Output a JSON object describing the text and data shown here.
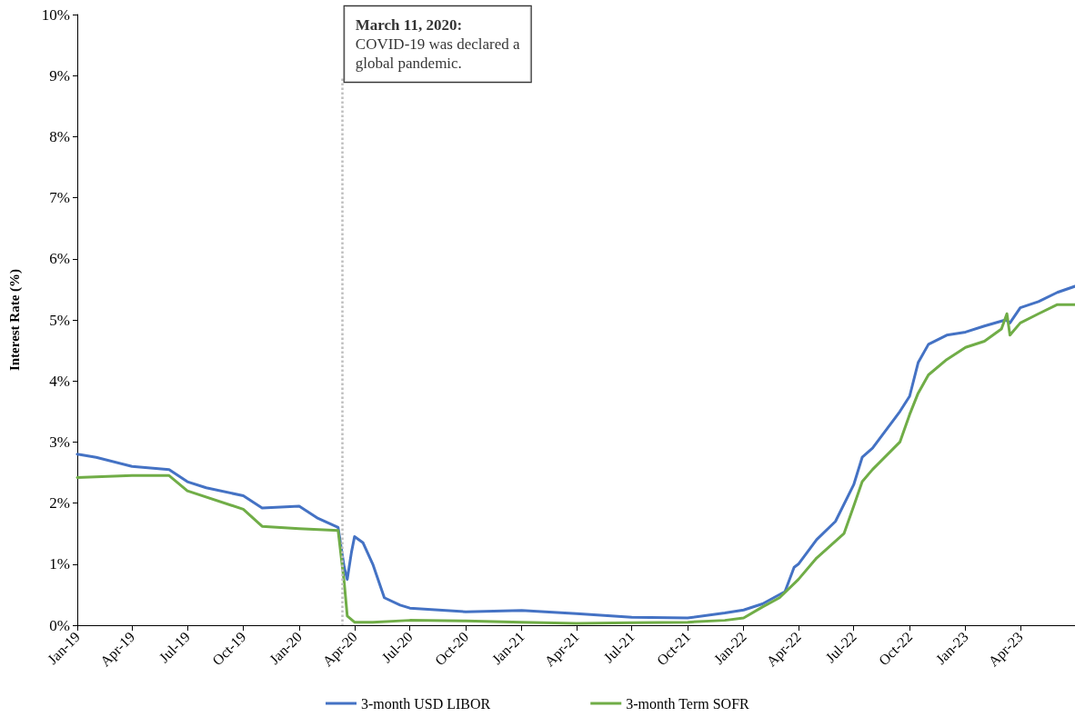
{
  "chart_data": {
    "type": "line",
    "ylabel": "Interest Rate (%)",
    "xlim": [
      "2019-01-01",
      "2023-06-30"
    ],
    "xticks": [
      {
        "value": "2019-01-01",
        "label": "Jan-19"
      },
      {
        "value": "2019-04-01",
        "label": "Apr-19"
      },
      {
        "value": "2019-07-01",
        "label": "Jul-19"
      },
      {
        "value": "2019-10-01",
        "label": "Oct-19"
      },
      {
        "value": "2020-01-01",
        "label": "Jan-20"
      },
      {
        "value": "2020-04-01",
        "label": "Apr-20"
      },
      {
        "value": "2020-07-01",
        "label": "Jul-20"
      },
      {
        "value": "2020-10-01",
        "label": "Oct-20"
      },
      {
        "value": "2021-01-01",
        "label": "Jan-21"
      },
      {
        "value": "2021-04-01",
        "label": "Apr-21"
      },
      {
        "value": "2021-07-01",
        "label": "Jul-21"
      },
      {
        "value": "2021-10-01",
        "label": "Oct-21"
      },
      {
        "value": "2022-01-01",
        "label": "Jan-22"
      },
      {
        "value": "2022-04-01",
        "label": "Apr-22"
      },
      {
        "value": "2022-07-01",
        "label": "Jul-22"
      },
      {
        "value": "2022-10-01",
        "label": "Oct-22"
      },
      {
        "value": "2023-01-01",
        "label": "Jan-23"
      },
      {
        "value": "2023-04-01",
        "label": "Apr-23"
      }
    ],
    "ylim": [
      0,
      10
    ],
    "yticks": [
      {
        "value": 0,
        "label": "0%"
      },
      {
        "value": 1,
        "label": "1%"
      },
      {
        "value": 2,
        "label": "2%"
      },
      {
        "value": 3,
        "label": "3%"
      },
      {
        "value": 4,
        "label": "4%"
      },
      {
        "value": 5,
        "label": "5%"
      },
      {
        "value": 6,
        "label": "6%"
      },
      {
        "value": 7,
        "label": "7%"
      },
      {
        "value": 8,
        "label": "8%"
      },
      {
        "value": 9,
        "label": "9%"
      },
      {
        "value": 10,
        "label": "10%"
      }
    ],
    "grid": false,
    "legend": "bottom",
    "marker": "none",
    "line_style": "solid",
    "ref_lines": [
      {
        "axis": "x",
        "value": "2020-03-11",
        "label": "March 11, 2020: COVID-19 was declared a global pandemic.",
        "color": "#bfbfbf",
        "line_style": "dotted"
      }
    ],
    "series": [
      {
        "name": "3-month USD LIBOR",
        "color": "#4472c4",
        "x": [
          "2019-01-01",
          "2019-02-01",
          "2019-04-01",
          "2019-06-01",
          "2019-07-01",
          "2019-08-01",
          "2019-10-01",
          "2019-11-01",
          "2020-01-01",
          "2020-02-01",
          "2020-03-05",
          "2020-03-15",
          "2020-03-20",
          "2020-03-27",
          "2020-04-01",
          "2020-04-15",
          "2020-05-01",
          "2020-05-20",
          "2020-06-15",
          "2020-07-01",
          "2020-10-01",
          "2021-01-01",
          "2021-04-01",
          "2021-07-01",
          "2021-10-01",
          "2021-12-01",
          "2022-01-01",
          "2022-02-01",
          "2022-03-10",
          "2022-03-25",
          "2022-04-01",
          "2022-05-01",
          "2022-06-01",
          "2022-07-01",
          "2022-07-15",
          "2022-08-01",
          "2022-09-15",
          "2022-10-01",
          "2022-10-15",
          "2022-11-01",
          "2022-12-01",
          "2023-01-01",
          "2023-02-01",
          "2023-03-08",
          "2023-03-15",
          "2023-04-01",
          "2023-05-01",
          "2023-06-01",
          "2023-06-30"
        ],
        "values": [
          2.8,
          2.75,
          2.6,
          2.55,
          2.35,
          2.25,
          2.12,
          1.92,
          1.95,
          1.75,
          1.6,
          0.95,
          0.75,
          1.2,
          1.45,
          1.35,
          1.0,
          0.45,
          0.33,
          0.28,
          0.22,
          0.24,
          0.19,
          0.13,
          0.12,
          0.2,
          0.25,
          0.35,
          0.55,
          0.95,
          1.0,
          1.4,
          1.7,
          2.3,
          2.75,
          2.9,
          3.5,
          3.75,
          4.3,
          4.6,
          4.75,
          4.8,
          4.9,
          5.0,
          4.95,
          5.2,
          5.3,
          5.45,
          5.55
        ]
      },
      {
        "name": "3-month Term SOFR",
        "color": "#70ad47",
        "x": [
          "2019-01-01",
          "2019-04-01",
          "2019-06-01",
          "2019-07-01",
          "2019-10-01",
          "2019-11-01",
          "2020-01-01",
          "2020-03-05",
          "2020-03-15",
          "2020-03-20",
          "2020-04-01",
          "2020-05-01",
          "2020-07-01",
          "2020-10-01",
          "2021-01-01",
          "2021-04-01",
          "2021-07-01",
          "2021-10-01",
          "2021-12-01",
          "2022-01-01",
          "2022-02-01",
          "2022-03-01",
          "2022-04-01",
          "2022-05-01",
          "2022-06-15",
          "2022-07-01",
          "2022-07-15",
          "2022-08-01",
          "2022-09-15",
          "2022-10-01",
          "2022-10-15",
          "2022-11-01",
          "2022-12-01",
          "2023-01-01",
          "2023-02-01",
          "2023-03-01",
          "2023-03-10",
          "2023-03-15",
          "2023-04-01",
          "2023-05-01",
          "2023-06-01",
          "2023-06-30"
        ],
        "values": [
          2.42,
          2.45,
          2.45,
          2.2,
          1.9,
          1.62,
          1.58,
          1.55,
          0.7,
          0.15,
          0.05,
          0.05,
          0.08,
          0.07,
          0.05,
          0.03,
          0.04,
          0.05,
          0.08,
          0.12,
          0.3,
          0.45,
          0.75,
          1.1,
          1.5,
          1.95,
          2.35,
          2.55,
          3.0,
          3.45,
          3.8,
          4.1,
          4.35,
          4.55,
          4.65,
          4.85,
          5.1,
          4.75,
          4.95,
          5.1,
          5.25,
          5.25
        ]
      }
    ]
  }
}
